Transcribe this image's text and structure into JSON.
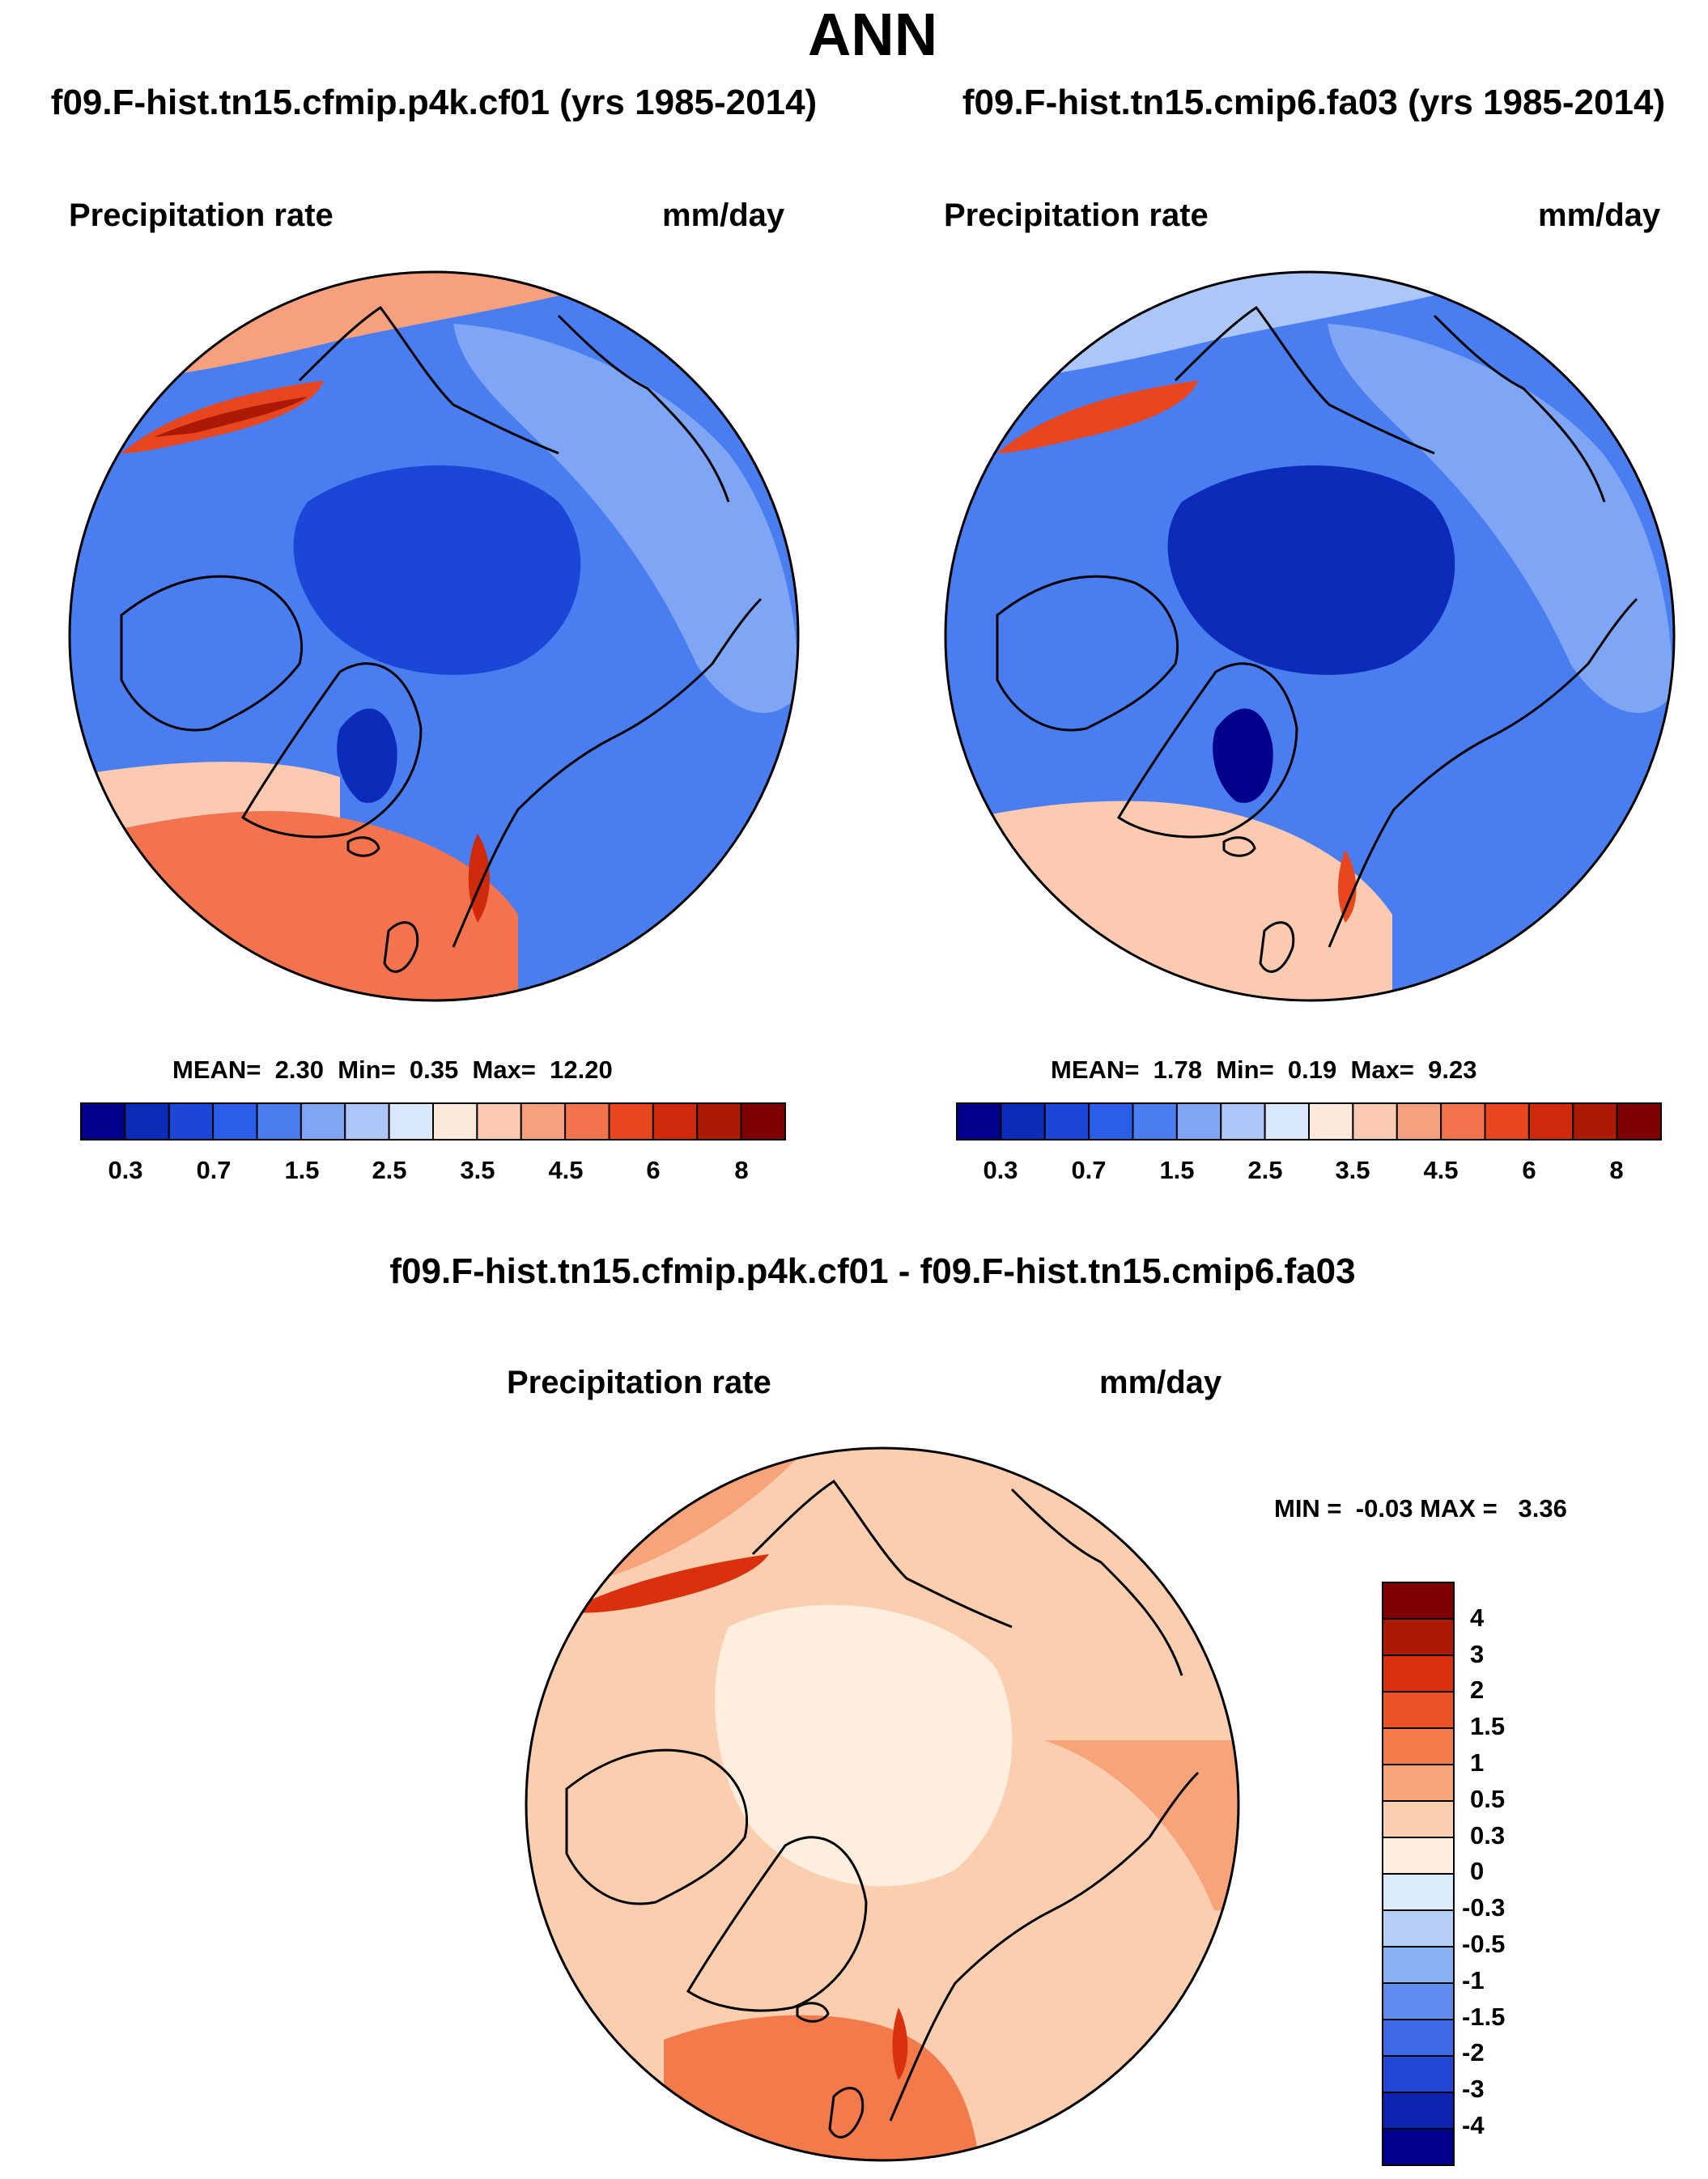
{
  "chart_data": [
    {
      "type": "heatmap",
      "projection": "north-polar-stereographic",
      "title": "f09.F-hist.tn15.cfmip.p4k.cf01 (yrs 1985-2014)",
      "left_label": "Precipitation rate",
      "right_label": "mm/day",
      "stats": {
        "mean_label": "MEAN=",
        "mean": "2.30",
        "min_label": "Min=",
        "min": "0.35",
        "max_label": "Max=",
        "max": "12.20"
      },
      "colorbar_ticks": [
        "0.3",
        "0.7",
        "1.5",
        "2.5",
        "3.5",
        "4.5",
        "6",
        "8"
      ]
    },
    {
      "type": "heatmap",
      "projection": "north-polar-stereographic",
      "title": "f09.F-hist.tn15.cmip6.fa03 (yrs 1985-2014)",
      "left_label": "Precipitation rate",
      "right_label": "mm/day",
      "stats": {
        "mean_label": "MEAN=",
        "mean": "1.78",
        "min_label": "Min=",
        "min": "0.19",
        "max_label": "Max=",
        "max": "9.23"
      },
      "colorbar_ticks": [
        "0.3",
        "0.7",
        "1.5",
        "2.5",
        "3.5",
        "4.5",
        "6",
        "8"
      ]
    },
    {
      "type": "heatmap",
      "projection": "north-polar-stereographic",
      "title": "f09.F-hist.tn15.cfmip.p4k.cf01 - f09.F-hist.tn15.cmip6.fa03",
      "left_label": "Precipitation rate",
      "right_label": "mm/day",
      "stats": {
        "min_label": "MIN =",
        "min": "-0.03",
        "max_label": "MAX =",
        "max": "3.36"
      },
      "colorbar_ticks": [
        "4",
        "3",
        "2",
        "1.5",
        "1",
        "0.5",
        "0.3",
        "0",
        "-0.3",
        "-0.5",
        "-1",
        "-1.5",
        "-2",
        "-3",
        "-4"
      ]
    }
  ],
  "header": {
    "title": "ANN"
  },
  "colors": {
    "precip_scale": [
      "#00008b",
      "#0a2cb8",
      "#1c47d6",
      "#2b5ee8",
      "#4a7ef0",
      "#7fa6f4",
      "#adc6f8",
      "#d9e8fb",
      "#fde9d9",
      "#fbcab0",
      "#f7a07e",
      "#f2734d",
      "#e8461f",
      "#cf2a0c",
      "#ac1a06",
      "#7f0000"
    ],
    "diff_scale": [
      "#7f0000",
      "#ac1a06",
      "#d9300e",
      "#ec5225",
      "#f37b4b",
      "#f8a47a",
      "#fbceb0",
      "#fdeede",
      "#dcebfb",
      "#b6cff8",
      "#8bb0f4",
      "#5f8cef",
      "#3d6be6",
      "#2148d6",
      "#0c24b0",
      "#00008b"
    ],
    "coast": "#000000"
  }
}
